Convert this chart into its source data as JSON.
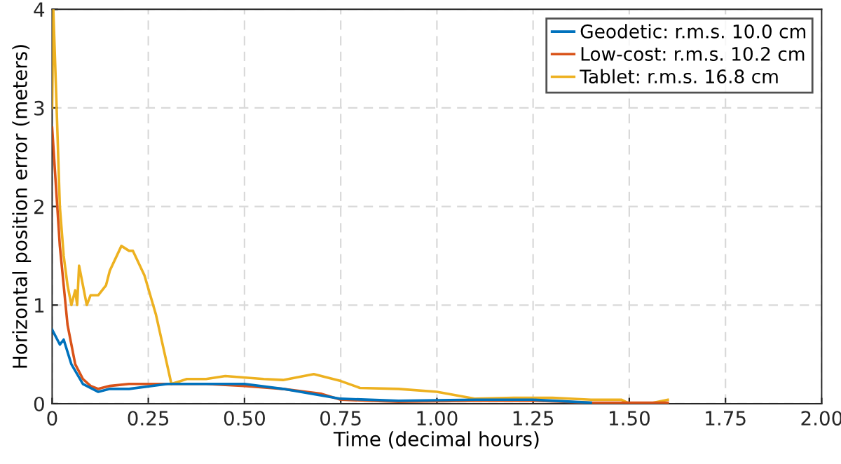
{
  "chart_data": {
    "type": "line",
    "xlabel": "Time (decimal hours)",
    "ylabel": "Horizontal position error (meters)",
    "xlim": [
      0,
      2
    ],
    "xticks": [
      {
        "value": 0,
        "label": "0"
      },
      {
        "value": 0.25,
        "label": "0.25"
      },
      {
        "value": 0.5,
        "label": "0.50"
      },
      {
        "value": 0.75,
        "label": "0.75"
      },
      {
        "value": 1,
        "label": "1.00"
      },
      {
        "value": 1.25,
        "label": "1.25"
      },
      {
        "value": 1.5,
        "label": "1.50"
      },
      {
        "value": 1.75,
        "label": "1.75"
      },
      {
        "value": 2,
        "label": "2.00"
      }
    ],
    "ylim": [
      0,
      4
    ],
    "yticks": [
      0,
      1,
      2,
      3,
      4
    ],
    "grid": true,
    "legend": "top right",
    "line_style": "solid",
    "series": [
      {
        "name": "Geodetic: r.m.s. 10.0 cm",
        "color": "#0072bd",
        "x": [
          0,
          0.02,
          0.03,
          0.05,
          0.08,
          0.12,
          0.15,
          0.2,
          0.3,
          0.5,
          0.6,
          0.75,
          0.9,
          1.1,
          1.25,
          1.4
        ],
        "values": [
          0.75,
          0.6,
          0.65,
          0.4,
          0.2,
          0.12,
          0.15,
          0.15,
          0.2,
          0.2,
          0.15,
          0.05,
          0.03,
          0.04,
          0.04,
          0.01
        ]
      },
      {
        "name": "Low-cost: r.m.s. 10.2 cm",
        "color": "#d95319",
        "x": [
          0,
          0.02,
          0.04,
          0.06,
          0.08,
          0.1,
          0.12,
          0.15,
          0.2,
          0.3,
          0.4,
          0.5,
          0.6,
          0.7,
          0.75,
          0.9,
          1.1,
          1.25,
          1.4,
          1.6
        ],
        "values": [
          2.8,
          1.6,
          0.8,
          0.4,
          0.25,
          0.18,
          0.15,
          0.18,
          0.2,
          0.2,
          0.2,
          0.18,
          0.15,
          0.1,
          0.04,
          0.02,
          0.03,
          0.03,
          0.01,
          0.01
        ]
      },
      {
        "name": "Tablet: r.m.s. 16.8 cm",
        "color": "#edb120",
        "x": [
          0,
          0.003,
          0.01,
          0.02,
          0.03,
          0.04,
          0.05,
          0.06,
          0.065,
          0.07,
          0.08,
          0.09,
          0.1,
          0.12,
          0.14,
          0.15,
          0.18,
          0.2,
          0.21,
          0.24,
          0.27,
          0.31,
          0.35,
          0.4,
          0.45,
          0.55,
          0.6,
          0.68,
          0.75,
          0.8,
          0.9,
          1.0,
          1.1,
          1.2,
          1.3,
          1.4,
          1.48,
          1.5,
          1.55,
          1.6
        ],
        "values": [
          3.0,
          4.0,
          3.2,
          2.0,
          1.5,
          1.2,
          1.0,
          1.15,
          1.0,
          1.4,
          1.2,
          1.0,
          1.1,
          1.1,
          1.2,
          1.35,
          1.6,
          1.55,
          1.55,
          1.3,
          0.9,
          0.2,
          0.25,
          0.25,
          0.28,
          0.25,
          0.24,
          0.3,
          0.23,
          0.16,
          0.15,
          0.12,
          0.05,
          0.06,
          0.06,
          0.04,
          0.04,
          0.0,
          0.0,
          0.04
        ]
      }
    ]
  }
}
